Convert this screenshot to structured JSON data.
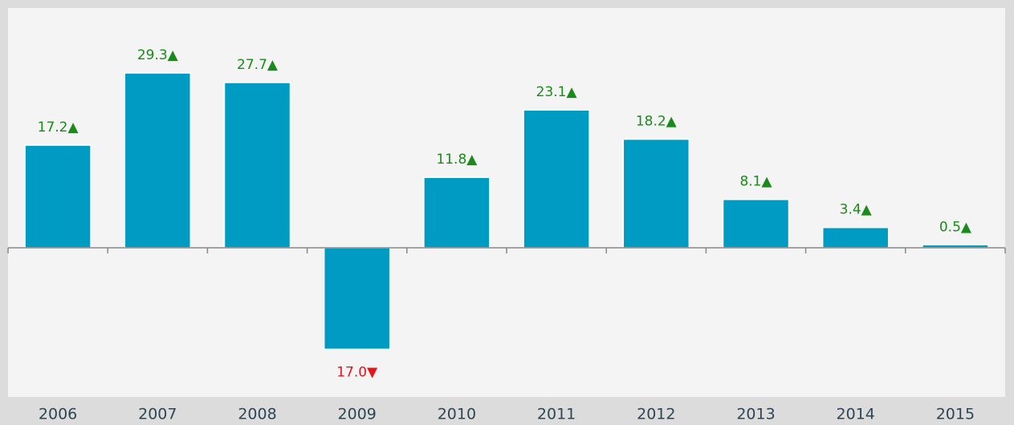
{
  "chart_data": {
    "type": "bar",
    "categories": [
      "2006",
      "2007",
      "2008",
      "2009",
      "2010",
      "2011",
      "2012",
      "2013",
      "2014",
      "2015"
    ],
    "values": [
      17.2,
      29.3,
      27.7,
      -17.0,
      11.8,
      23.1,
      18.2,
      8.1,
      3.4,
      0.5
    ],
    "value_labels": [
      "17.2▲",
      "29.3▲",
      "27.7▲",
      "17.0▼",
      "11.8▲",
      "23.1▲",
      "18.2▲",
      "8.1▲",
      "3.4▲",
      "0.5▲"
    ],
    "color": "#009bc2",
    "positive_label_color": "#1a8a1a",
    "negative_label_color": "#e8141a",
    "ylim": [
      -25,
      40
    ]
  }
}
